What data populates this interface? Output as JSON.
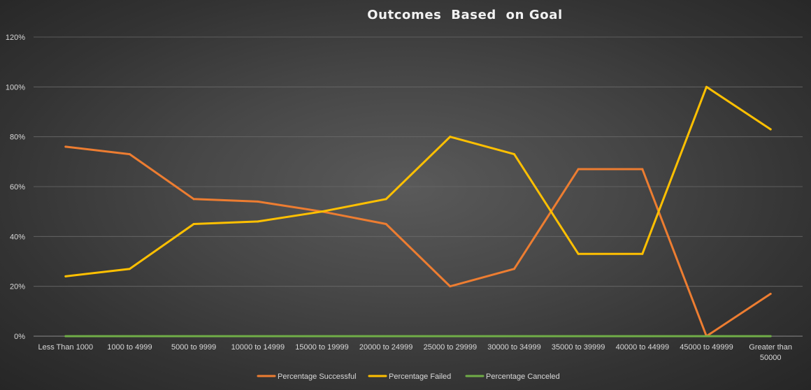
{
  "chart_data": {
    "type": "line",
    "title": "Outcomes  Based  on Goal",
    "xlabel": "",
    "ylabel": "",
    "ylim": [
      0,
      1.2
    ],
    "y_ticks": [
      {
        "value": 0,
        "label": "0%"
      },
      {
        "value": 0.2,
        "label": "20%"
      },
      {
        "value": 0.4,
        "label": "40%"
      },
      {
        "value": 0.6,
        "label": "60%"
      },
      {
        "value": 0.8,
        "label": "80%"
      },
      {
        "value": 1.0,
        "label": "100%"
      },
      {
        "value": 1.2,
        "label": "120%"
      }
    ],
    "categories": [
      "Less Than 1000",
      "1000 to 4999",
      "5000 to 9999",
      "10000 to 14999",
      "15000 to 19999",
      "20000 to 24999",
      "25000 to 29999",
      "30000 to 34999",
      "35000 to 39999",
      "40000 to 44999",
      "45000 to 49999",
      "Greater than 50000"
    ],
    "series": [
      {
        "name": "Percentage Successful",
        "color": "#ed7d31",
        "values": [
          0.76,
          0.73,
          0.55,
          0.54,
          0.5,
          0.45,
          0.2,
          0.27,
          0.67,
          0.67,
          0.0,
          0.17
        ]
      },
      {
        "name": "Percentage Failed",
        "color": "#ffc000",
        "values": [
          0.24,
          0.27,
          0.45,
          0.46,
          0.5,
          0.55,
          0.8,
          0.73,
          0.33,
          0.33,
          1.0,
          0.83
        ]
      },
      {
        "name": "Percentage Canceled",
        "color": "#70ad47",
        "values": [
          0,
          0,
          0,
          0,
          0,
          0,
          0,
          0,
          0,
          0,
          0,
          0
        ]
      }
    ],
    "grid": true,
    "legend_position": "bottom"
  }
}
